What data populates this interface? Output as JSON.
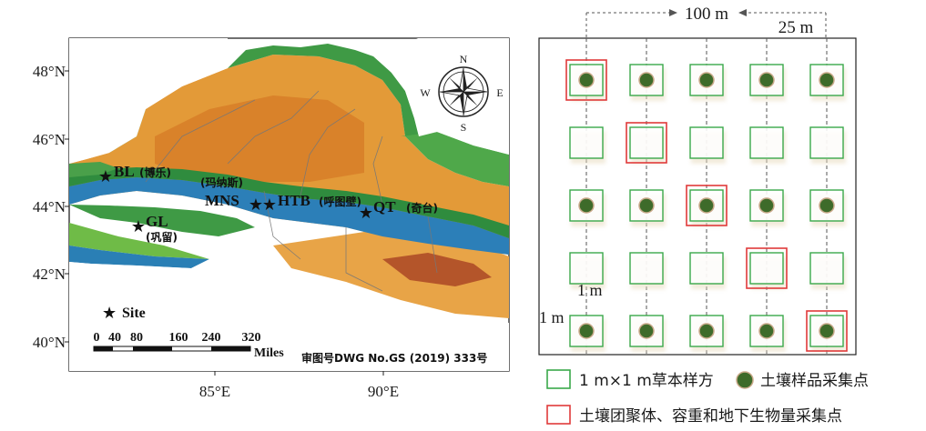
{
  "map": {
    "lat_labels": [
      "48°N",
      "46°N",
      "44°N",
      "42°N",
      "40°N"
    ],
    "lon_labels": [
      "85°E",
      "90°E"
    ],
    "compass": {
      "n": "N",
      "e": "E",
      "s": "S",
      "w": "W"
    },
    "sites": [
      {
        "code": "BL",
        "name": "(博乐)"
      },
      {
        "code": "GL",
        "name": "(巩留)"
      },
      {
        "code": "MNS",
        "name": "(玛纳斯)"
      },
      {
        "code": "HTB",
        "name": "(呼图壁)"
      },
      {
        "code": "QT",
        "name": "(奇台)"
      }
    ],
    "legend_site_label": "Site",
    "scale_ticks": [
      "0",
      "40",
      "80",
      "160",
      "240",
      "320"
    ],
    "scale_unit": "Miles",
    "approval_number": "审图号DWG No.GS (2019) 333号"
  },
  "plot": {
    "rows": 5,
    "cols": 5,
    "spacing_label": "100 m",
    "interval_label": "25 m",
    "quadrat_label_h": "1 m",
    "quadrat_label_v": "1 m",
    "red_cells": [
      [
        0,
        0
      ],
      [
        1,
        1
      ],
      [
        2,
        2
      ],
      [
        3,
        3
      ],
      [
        4,
        4
      ]
    ],
    "colors": {
      "quadrat": "#3aa84a",
      "aggregate": "#e03a3a",
      "soil_point": "#3e6b2a",
      "soil_point_ring": "#c9a98a"
    }
  },
  "legend": {
    "quadrat": "1 m×1 m草本样方",
    "soil_point": "土壤样品采集点",
    "aggregate": "土壤团聚体、容重和地下生物量采集点"
  }
}
